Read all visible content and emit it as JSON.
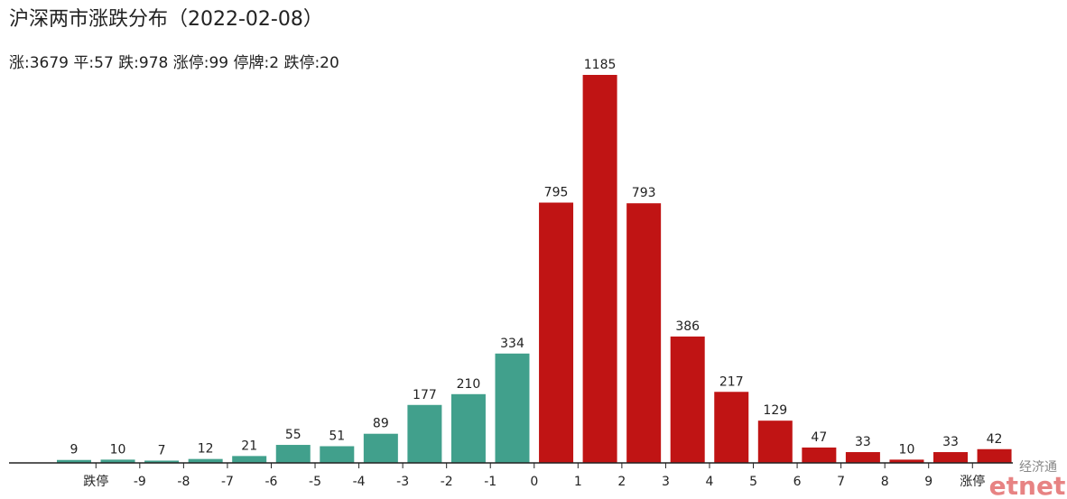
{
  "chart_data": {
    "type": "bar",
    "title": "沪深两市涨跌分布（2022-02-08）",
    "subtitle": "涨:3679 平:57 跌:978 涨停:99 停牌:2 跌停:20",
    "values": [
      9,
      10,
      7,
      12,
      21,
      55,
      51,
      89,
      177,
      210,
      334,
      795,
      1185,
      793,
      386,
      217,
      129,
      47,
      33,
      10,
      33,
      42
    ],
    "colors": [
      "#41a08c",
      "#41a08c",
      "#41a08c",
      "#41a08c",
      "#41a08c",
      "#41a08c",
      "#41a08c",
      "#41a08c",
      "#41a08c",
      "#41a08c",
      "#41a08c",
      "#c01414",
      "#c01414",
      "#c01414",
      "#c01414",
      "#c01414",
      "#c01414",
      "#c01414",
      "#c01414",
      "#c01414",
      "#c01414",
      "#c01414"
    ],
    "boundary_labels": [
      "跌停",
      "-9",
      "-8",
      "-7",
      "-6",
      "-5",
      "-4",
      "-3",
      "-2",
      "-1",
      "0",
      "1",
      "2",
      "3",
      "4",
      "5",
      "6",
      "7",
      "8",
      "9",
      "涨停"
    ],
    "ylim": [
      0,
      1185
    ],
    "watermark": {
      "top": "经济通",
      "bottom": "etnet"
    }
  }
}
